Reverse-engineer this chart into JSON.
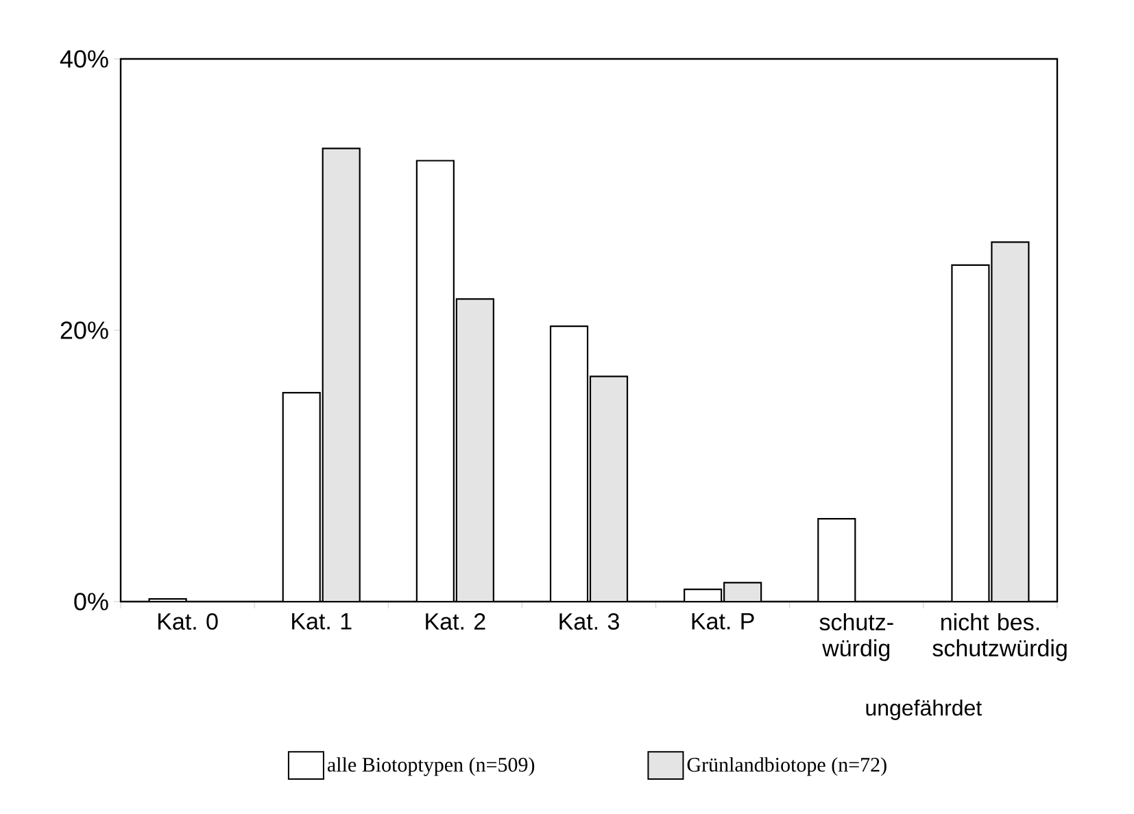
{
  "chart_data": {
    "type": "bar",
    "categories": [
      "Kat. 0",
      "Kat. 1",
      "Kat. 2",
      "Kat. 3",
      "Kat. P",
      "schutz-würdig",
      "nicht bes. schutzwürdig"
    ],
    "series": [
      {
        "name": "alle Biotoptypen (n=509)",
        "color": "#ffffff",
        "values": [
          0.2,
          15.4,
          32.5,
          20.3,
          0.9,
          6.1,
          24.8
        ]
      },
      {
        "name": "Grünlandbiotope (n=72)",
        "color": "#e4e4e4",
        "values": [
          null,
          33.4,
          22.3,
          16.6,
          1.4,
          null,
          26.5
        ]
      }
    ],
    "ylim": [
      0,
      40
    ],
    "yticks": [
      {
        "value": 0,
        "label": "0%"
      },
      {
        "value": 20,
        "label": "20%"
      },
      {
        "value": 40,
        "label": "40%"
      }
    ],
    "annotations": [
      "ungefährdet"
    ],
    "grid": false,
    "legend": "bottom"
  }
}
